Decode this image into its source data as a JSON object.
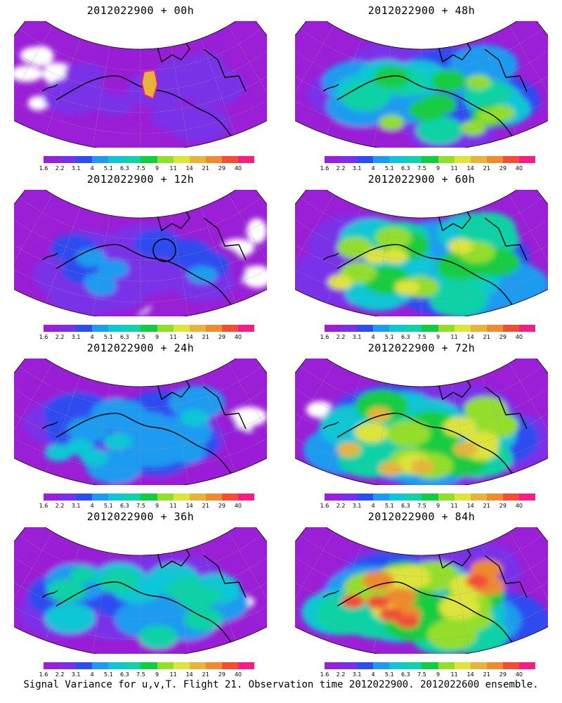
{
  "caption": "Signal Variance for u,v,T. Flight 21. Observation time 2012022900. 2012022600 ensemble.",
  "colorbar": {
    "labels": [
      "1.6",
      "2.2",
      "3.1",
      "4",
      "5.1",
      "6.3",
      "7.5",
      "9",
      "11",
      "14",
      "21",
      "29",
      "40"
    ],
    "colors": [
      "#9a1fd6",
      "#7a30e8",
      "#2f4cf0",
      "#1e9bf0",
      "#10c6d6",
      "#10d2a6",
      "#13cc40",
      "#93de2a",
      "#dde43a",
      "#e6b43a",
      "#ee8a2f",
      "#f24d35",
      "#f41e86"
    ]
  },
  "panels": [
    {
      "title": "2012022900 + 00h",
      "intensity": 0.15,
      "markers": [
        "hotspot"
      ]
    },
    {
      "title": "2012022900 + 48h",
      "intensity": 0.62,
      "markers": []
    },
    {
      "title": "2012022900 + 12h",
      "intensity": 0.28,
      "markers": [
        "circle"
      ]
    },
    {
      "title": "2012022900 + 60h",
      "intensity": 0.7,
      "markers": []
    },
    {
      "title": "2012022900 + 24h",
      "intensity": 0.4,
      "markers": []
    },
    {
      "title": "2012022900 + 72h",
      "intensity": 0.8,
      "markers": []
    },
    {
      "title": "2012022900 + 36h",
      "intensity": 0.5,
      "markers": []
    },
    {
      "title": "2012022900 + 84h",
      "intensity": 0.9,
      "markers": []
    }
  ]
}
